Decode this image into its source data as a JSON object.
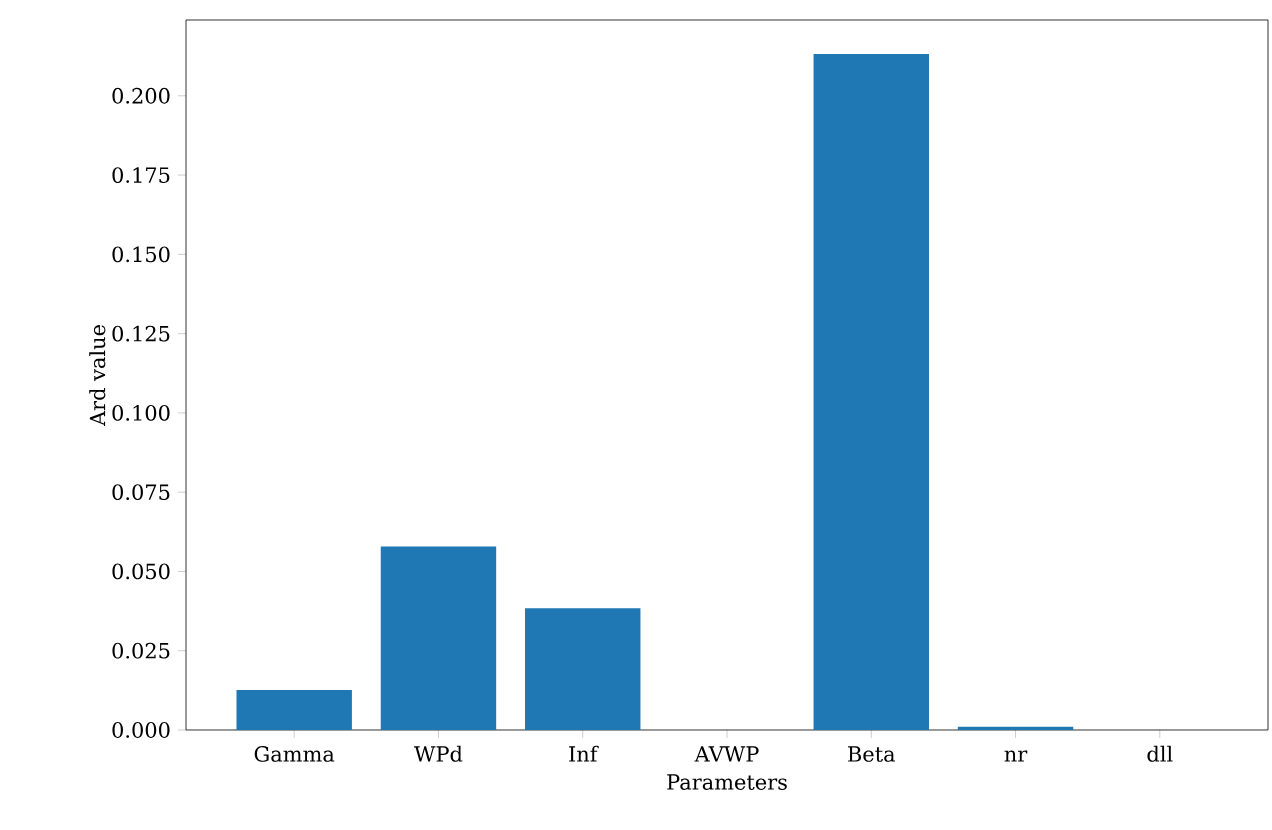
{
  "chart_data": {
    "type": "bar",
    "xlabel": "Parameters",
    "ylabel": "Ard value",
    "categories": [
      "Gamma",
      "WPd",
      "Inf",
      "AVWP",
      "Beta",
      "nr",
      "dll"
    ],
    "values": [
      0.0126,
      0.0579,
      0.0384,
      0,
      0.2132,
      0.001,
      0
    ],
    "color": "#1f77b4",
    "ylim": [
      0,
      0.2239
    ],
    "yticks": [
      {
        "value": 0,
        "label": "0.000"
      },
      {
        "value": 0.025,
        "label": "0.025"
      },
      {
        "value": 0.05,
        "label": "0.050"
      },
      {
        "value": 0.075,
        "label": "0.075"
      },
      {
        "value": 0.1,
        "label": "0.100"
      },
      {
        "value": 0.125,
        "label": "0.125"
      },
      {
        "value": 0.15,
        "label": "0.150"
      },
      {
        "value": 0.175,
        "label": "0.175"
      },
      {
        "value": 0.2,
        "label": "0.200"
      }
    ],
    "grid": false
  }
}
